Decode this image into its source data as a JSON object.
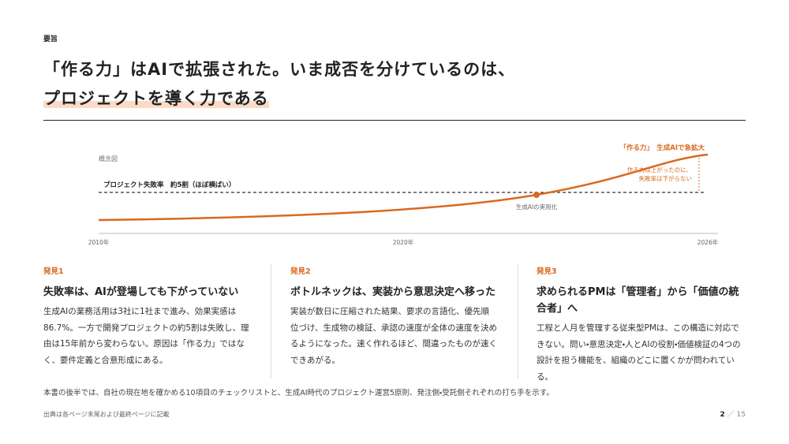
{
  "header": {
    "label": "要旨",
    "title_lines": [
      "「作る力」はAIで拡張された。いま成否を分けているのは、",
      "プロジェクトを導く力である"
    ]
  },
  "concept": {
    "label": "概念図",
    "failure_line": "プロジェクト失敗率　約5割（ほぼ横ばい）",
    "legend": "「作る力」　生成AIで急拡大",
    "note_lines": [
      "作る力は上がったのに、",
      "失敗率は下がらない"
    ],
    "point_label": "生成AIの実用化",
    "years": [
      "2010年",
      "2020年",
      "2026年"
    ]
  },
  "findings": [
    {
      "label": "発見1",
      "heading": "失敗率は、AIが登場しても下がっていない",
      "body": "生成AIの業務活用は3社に1社まで進み、効果実感は86.7%。一方で開発プロジェクトの約5割は失敗し、理由は15年前から変わらない。原因は「作る力」ではなく、要件定義と合意形成にある。"
    },
    {
      "label": "発見2",
      "heading": "ボトルネックは、実装から意思決定へ移った",
      "body": "実装が数日に圧縮された結果、要求の言語化、優先順位づけ、生成物の検証、承認の速度が全体の速度を決めるようになった。速く作れるほど、間違ったものが速くできあがる。"
    },
    {
      "label": "発見3",
      "heading": "求められるPMは「管理者」から「価値の統合者」へ",
      "body": "工程と人月を管理する従来型PMは、この構造に対応できない。問い・意思決定・人とAIの役割・価値検証の4つの設計を担う機能を、組織のどこに置くかが問われている。"
    }
  ],
  "summary": "本書の後半では、自社の現在地を確かめる10項目のチェックリストと、生成AI時代のプロジェクト運営5原則、発注側・受託側それぞれの打ち手を示す。",
  "footer": {
    "source": "出典は各ページ末尾および最終ページに記載",
    "page": "2",
    "separator": "／",
    "total": "15"
  }
}
